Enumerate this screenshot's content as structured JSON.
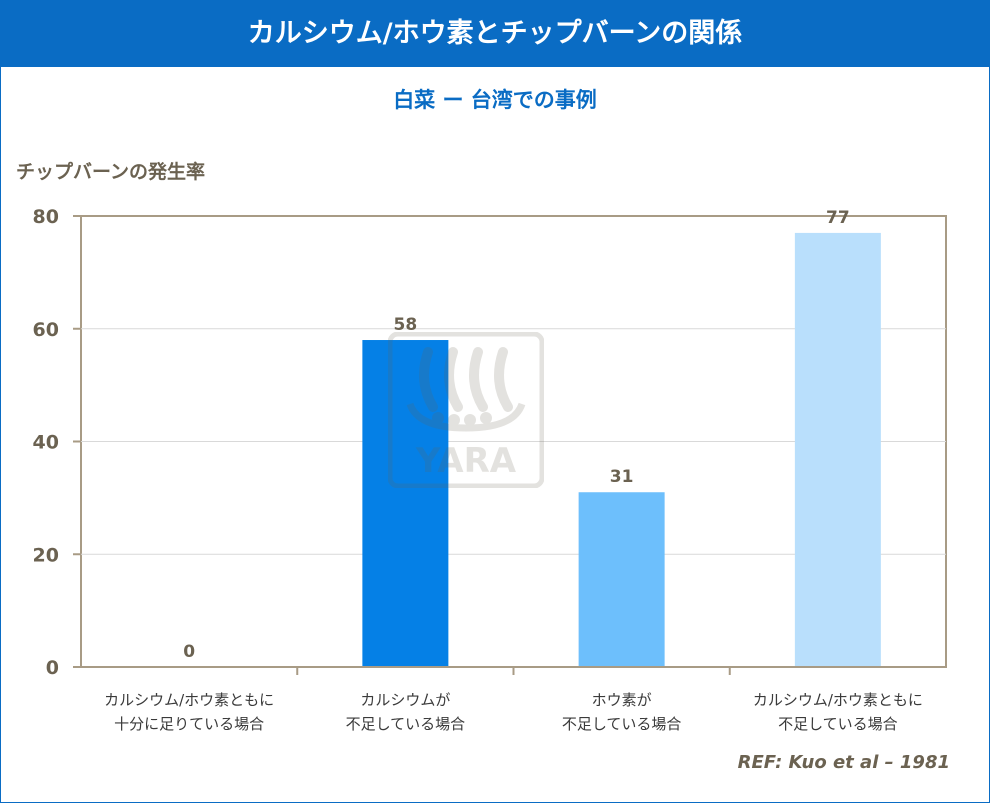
{
  "header": {
    "title": "カルシウム/ホウ素とチップバーンの関係",
    "subtitle": "白菜 ー 台湾での事例"
  },
  "reference": "REF: Kuo et al – 1981",
  "watermark": {
    "text": "YARA",
    "icon": "yara-viking-ship-logo"
  },
  "colors": {
    "header_bg": "#0a6cc4",
    "axis": "#a89b85",
    "grid": "#d9d9d9",
    "bar_1": "#0a6cc4",
    "bar_2": "#0580e6",
    "bar_3": "#6dbffc",
    "bar_4": "#b9dffc"
  },
  "chart_data": {
    "type": "bar",
    "title": "",
    "ylabel": "チップバーンの発生率",
    "xlabel": "",
    "ylim": [
      0,
      80
    ],
    "yticks": [
      0,
      20,
      40,
      60,
      80
    ],
    "grid": true,
    "legend": "none",
    "categories": [
      [
        "カルシウム/ホウ素ともに",
        "十分に足りている場合"
      ],
      [
        "カルシウムが",
        "不足している場合"
      ],
      [
        "ホウ素が",
        "不足している場合"
      ],
      [
        "カルシウム/ホウ素ともに",
        "不足している場合"
      ]
    ],
    "values": [
      0,
      58,
      31,
      77
    ],
    "value_labels": [
      "0",
      "58",
      "31",
      "77"
    ]
  }
}
